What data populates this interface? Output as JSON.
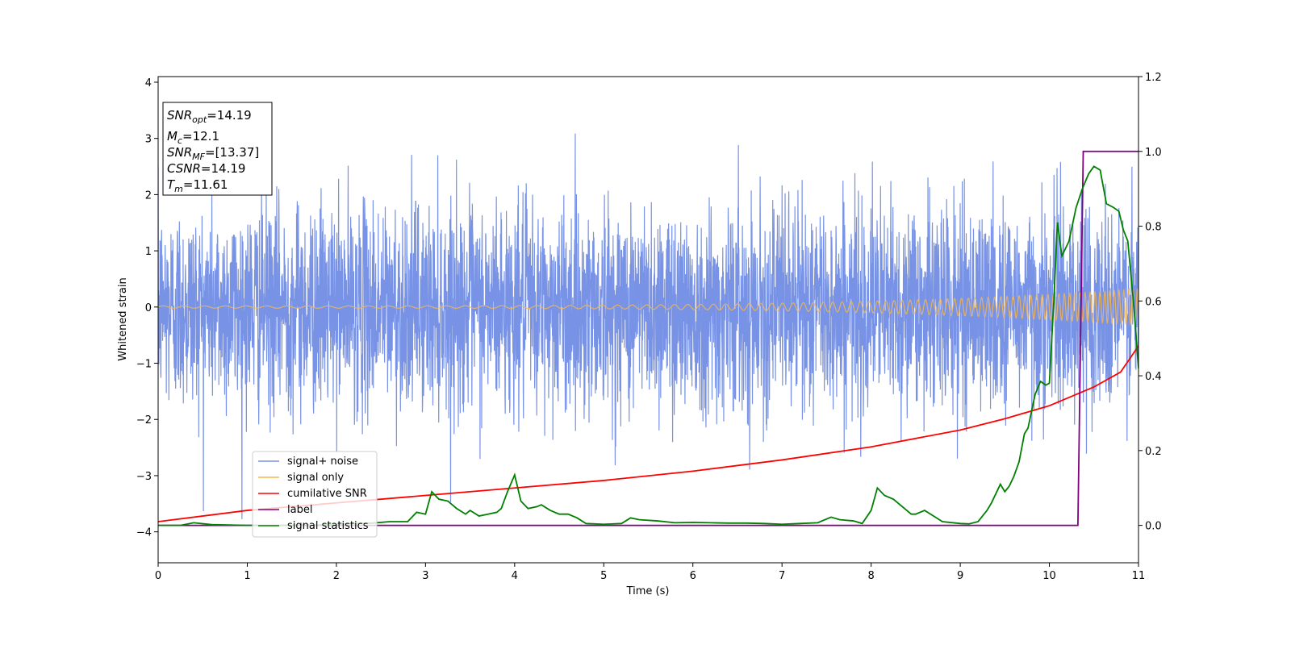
{
  "chart_data": {
    "type": "line",
    "xlabel": "Time (s)",
    "ylabel": "Whitened strain",
    "xlim": [
      0,
      11
    ],
    "ylim_left": [
      -4.55,
      4.1
    ],
    "ylim_right": [
      -0.1,
      1.2
    ],
    "xticks": [
      "0",
      "1",
      "2",
      "3",
      "4",
      "5",
      "6",
      "7",
      "8",
      "9",
      "10",
      "11"
    ],
    "yticks_left": [
      "−4",
      "−3",
      "−2",
      "−1",
      "0",
      "1",
      "2",
      "3",
      "4"
    ],
    "yticks_right": [
      "0.0",
      "0.2",
      "0.4",
      "0.6",
      "0.8",
      "1.0",
      "1.2"
    ],
    "annotation": {
      "snr_opt": "=14.19",
      "mc": "=12.1",
      "snr_mf": "=[13.37]",
      "csnr": "=14.19",
      "tm": "=11.61"
    },
    "legend": {
      "placement": "lower-left",
      "entries": [
        "signal+ noise",
        "signal only",
        "cumilative SNR",
        "label",
        "signal statistics"
      ]
    },
    "colors": {
      "signal_noise": "#7893e6",
      "signal_only": "#f5b650",
      "cumulative_snr": "#ff0000",
      "label": "#800080",
      "signal_statistics": "#008000"
    },
    "series": [
      {
        "name": "signal+ noise",
        "axis": "left",
        "description_values": {
          "std": 0.9,
          "min": -4.15,
          "max": 3.27
        }
      },
      {
        "name": "signal only",
        "axis": "left",
        "chirp": {
          "amplitude_start": 0.02,
          "amplitude_end": 0.32,
          "freq_start_hz": 4.3,
          "freq_end_hz": 20
        }
      },
      {
        "name": "cumilative SNR",
        "axis": "right",
        "x": [
          0,
          1,
          2,
          3,
          4,
          5,
          6,
          7,
          8,
          9,
          9.5,
          10,
          10.5,
          10.8,
          11
        ],
        "y": [
          0.01,
          0.04,
          0.06,
          0.08,
          0.1,
          0.12,
          0.145,
          0.175,
          0.21,
          0.255,
          0.285,
          0.32,
          0.37,
          0.41,
          0.48
        ]
      },
      {
        "name": "label",
        "axis": "right",
        "x": [
          0,
          10.32,
          10.38,
          11
        ],
        "y": [
          0,
          0,
          1,
          1
        ]
      },
      {
        "name": "signal statistics",
        "axis": "right",
        "x": [
          0,
          0.25,
          0.4,
          0.6,
          1.0,
          1.4,
          1.8,
          2.0,
          2.2,
          2.4,
          2.6,
          2.8,
          2.9,
          3.0,
          3.07,
          3.15,
          3.25,
          3.35,
          3.45,
          3.5,
          3.6,
          3.7,
          3.8,
          3.85,
          3.92,
          4.0,
          4.07,
          4.15,
          4.25,
          4.3,
          4.4,
          4.5,
          4.6,
          4.7,
          4.8,
          5.0,
          5.2,
          5.3,
          5.4,
          5.6,
          5.8,
          6.0,
          6.2,
          6.4,
          6.6,
          6.8,
          7.0,
          7.2,
          7.4,
          7.55,
          7.65,
          7.8,
          7.9,
          8.0,
          8.07,
          8.15,
          8.25,
          8.35,
          8.45,
          8.5,
          8.6,
          8.7,
          8.8,
          9.0,
          9.1,
          9.2,
          9.3,
          9.35,
          9.45,
          9.5,
          9.55,
          9.6,
          9.66,
          9.72,
          9.76,
          9.84,
          9.9,
          9.96,
          10.0,
          10.05,
          10.09,
          10.14,
          10.22,
          10.3,
          10.37,
          10.44,
          10.5,
          10.57,
          10.64,
          10.72,
          10.78,
          10.83,
          10.88,
          10.95,
          11.0
        ],
        "y": [
          0,
          0,
          0.007,
          0.002,
          0.0,
          0.0,
          0.001,
          0.003,
          0.005,
          0.006,
          0.01,
          0.01,
          0.035,
          0.03,
          0.09,
          0.07,
          0.065,
          0.045,
          0.03,
          0.04,
          0.025,
          0.03,
          0.035,
          0.045,
          0.09,
          0.135,
          0.065,
          0.045,
          0.05,
          0.055,
          0.04,
          0.03,
          0.03,
          0.02,
          0.005,
          0.003,
          0.005,
          0.02,
          0.015,
          0.012,
          0.007,
          0.008,
          0.007,
          0.006,
          0.006,
          0.005,
          0.003,
          0.005,
          0.007,
          0.022,
          0.015,
          0.012,
          0.005,
          0.04,
          0.1,
          0.08,
          0.07,
          0.05,
          0.03,
          0.03,
          0.04,
          0.025,
          0.01,
          0.005,
          0.004,
          0.01,
          0.04,
          0.06,
          0.11,
          0.09,
          0.105,
          0.13,
          0.17,
          0.245,
          0.26,
          0.35,
          0.385,
          0.375,
          0.38,
          0.6,
          0.81,
          0.72,
          0.76,
          0.85,
          0.9,
          0.94,
          0.96,
          0.95,
          0.86,
          0.85,
          0.84,
          0.79,
          0.76,
          0.58,
          0.42
        ]
      }
    ]
  }
}
